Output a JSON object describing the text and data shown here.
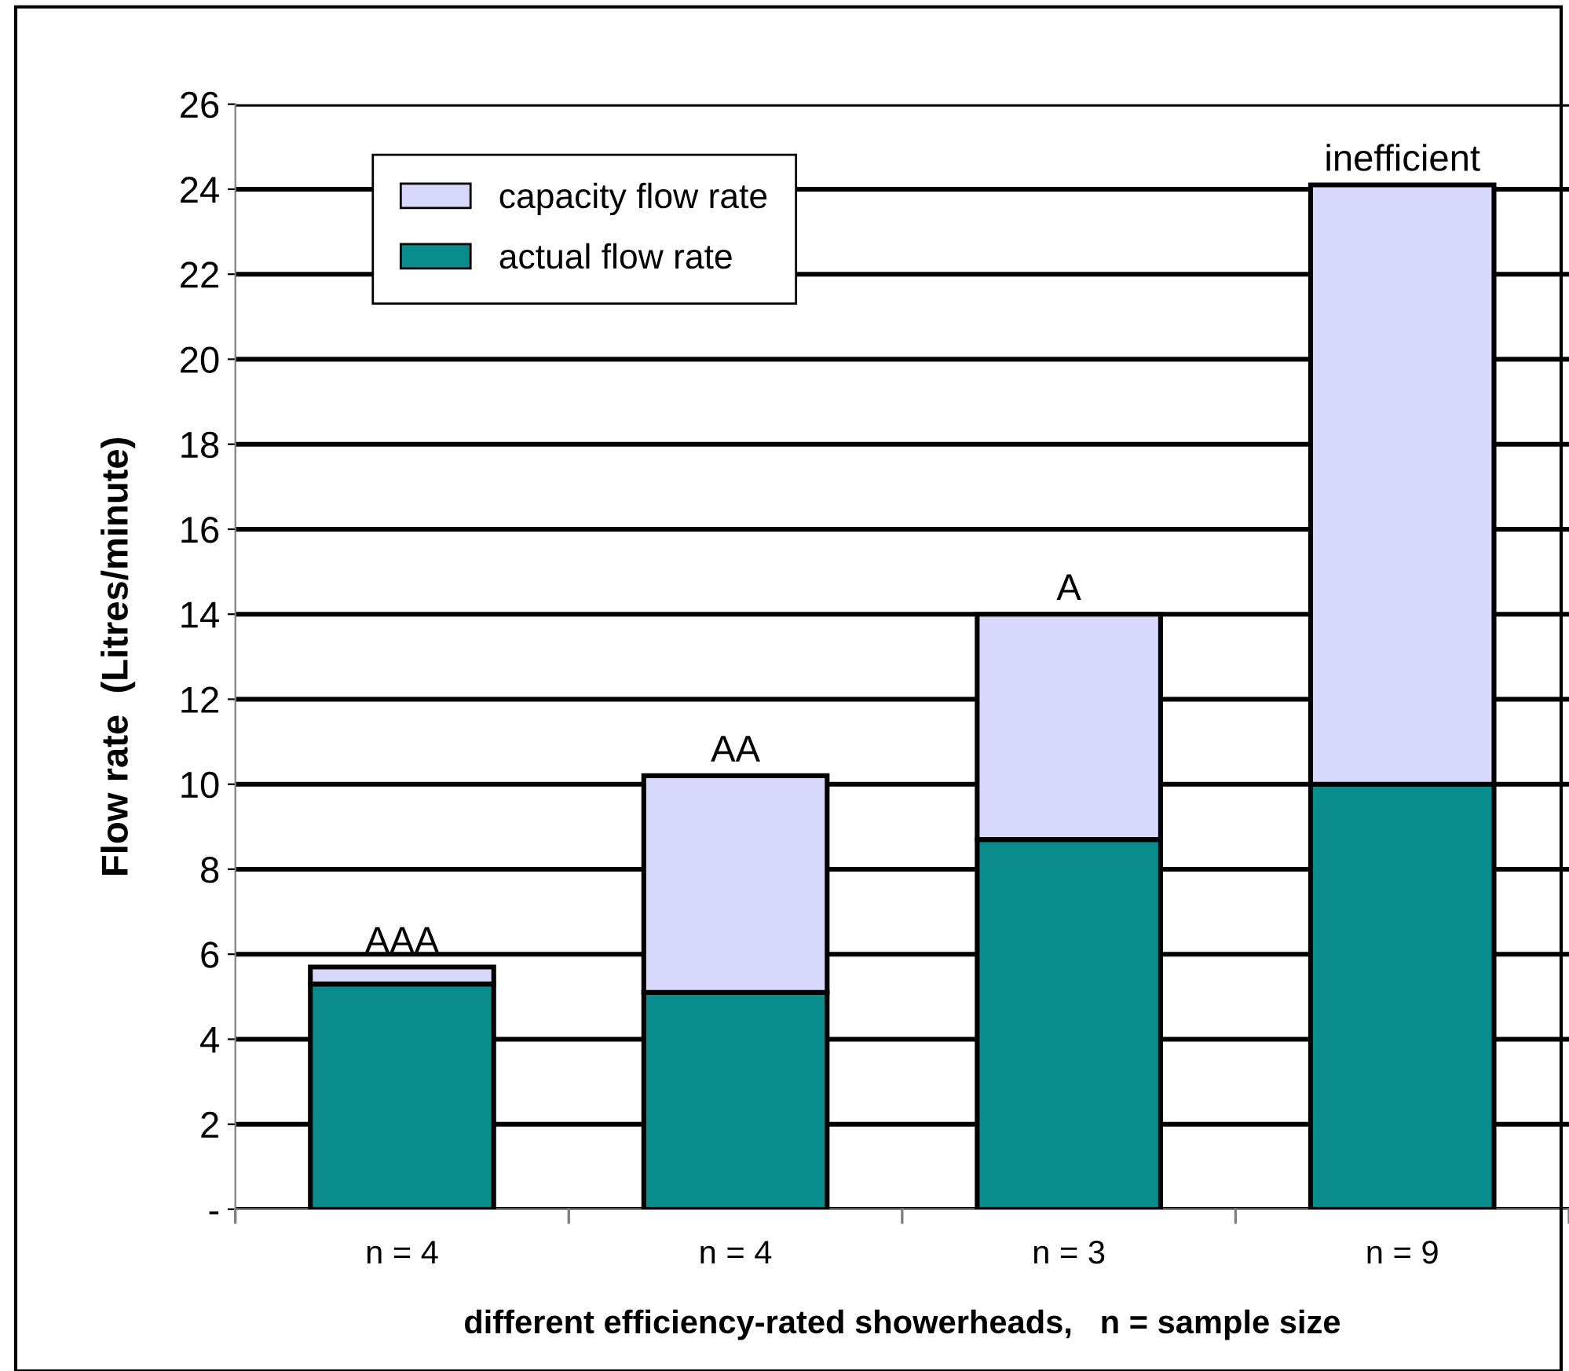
{
  "chart_data": {
    "type": "bar",
    "stacked": true,
    "xlabel": "different efficiency-rated showerheads,   n = sample size",
    "ylabel": "Flow rate  (Litres/minute)",
    "categories": [
      "n = 4",
      "n = 4",
      "n = 3",
      "n = 9"
    ],
    "series": [
      {
        "name": "actual flow rate",
        "color": "#0a8c8c",
        "values": [
          5.3,
          5.1,
          8.7,
          10.0
        ]
      },
      {
        "name": "capacity flow rate",
        "color": "#d8d8fc",
        "values": [
          0.4,
          5.1,
          5.3,
          14.1
        ]
      }
    ],
    "ylim": [
      0,
      26
    ],
    "yticks": [
      {
        "value": 0,
        "label": "-"
      },
      2,
      4,
      6,
      8,
      10,
      12,
      14,
      16,
      18,
      20,
      22,
      24,
      26
    ],
    "grid": "y",
    "legend": "top left",
    "annotations": [
      "AAA",
      "AA",
      "A",
      "inefficient"
    ]
  }
}
